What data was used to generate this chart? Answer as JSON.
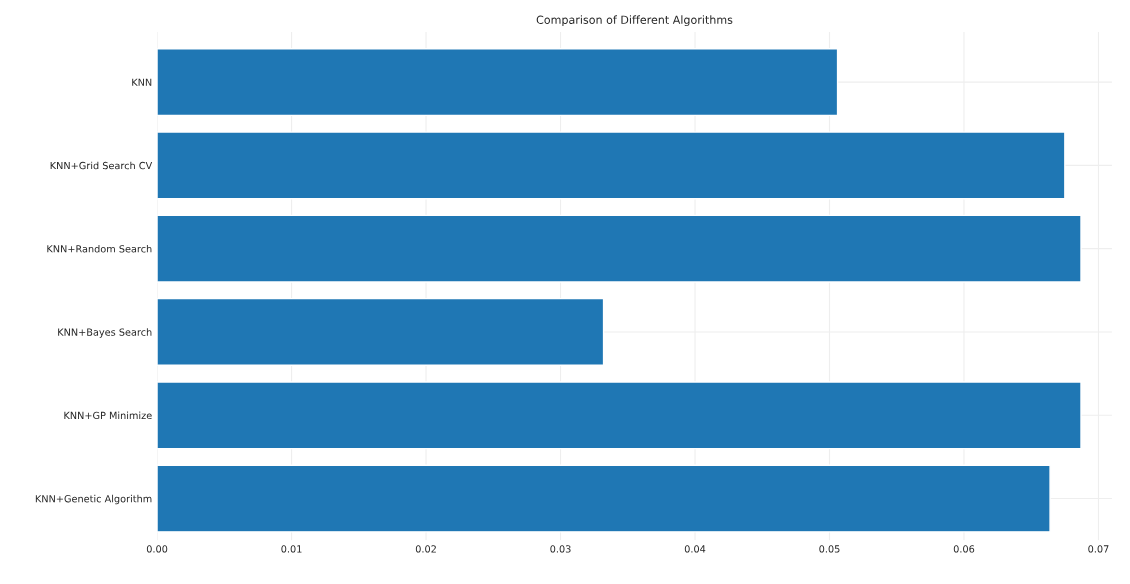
{
  "chart_data": {
    "type": "bar",
    "orientation": "horizontal",
    "title": "Comparison of Different Algorithms",
    "categories": [
      "KNN",
      "KNN+Grid Search CV",
      "KNN+Random Search",
      "KNN+Bayes Search",
      "KNN+GP Minimize",
      "KNN+Genetic Algorithm"
    ],
    "values": [
      0.0506,
      0.0675,
      0.0687,
      0.0332,
      0.0687,
      0.0664
    ],
    "color": "#1f77b4",
    "xlim": [
      0,
      0.071
    ],
    "xticks": [
      {
        "value": 0,
        "label": "0.00"
      },
      {
        "value": 0.01,
        "label": "0.01"
      },
      {
        "value": 0.02,
        "label": "0.02"
      },
      {
        "value": 0.03,
        "label": "0.03"
      },
      {
        "value": 0.04,
        "label": "0.04"
      },
      {
        "value": 0.05,
        "label": "0.05"
      },
      {
        "value": 0.06,
        "label": "0.06"
      },
      {
        "value": 0.07,
        "label": "0.07"
      }
    ],
    "grid": true
  }
}
